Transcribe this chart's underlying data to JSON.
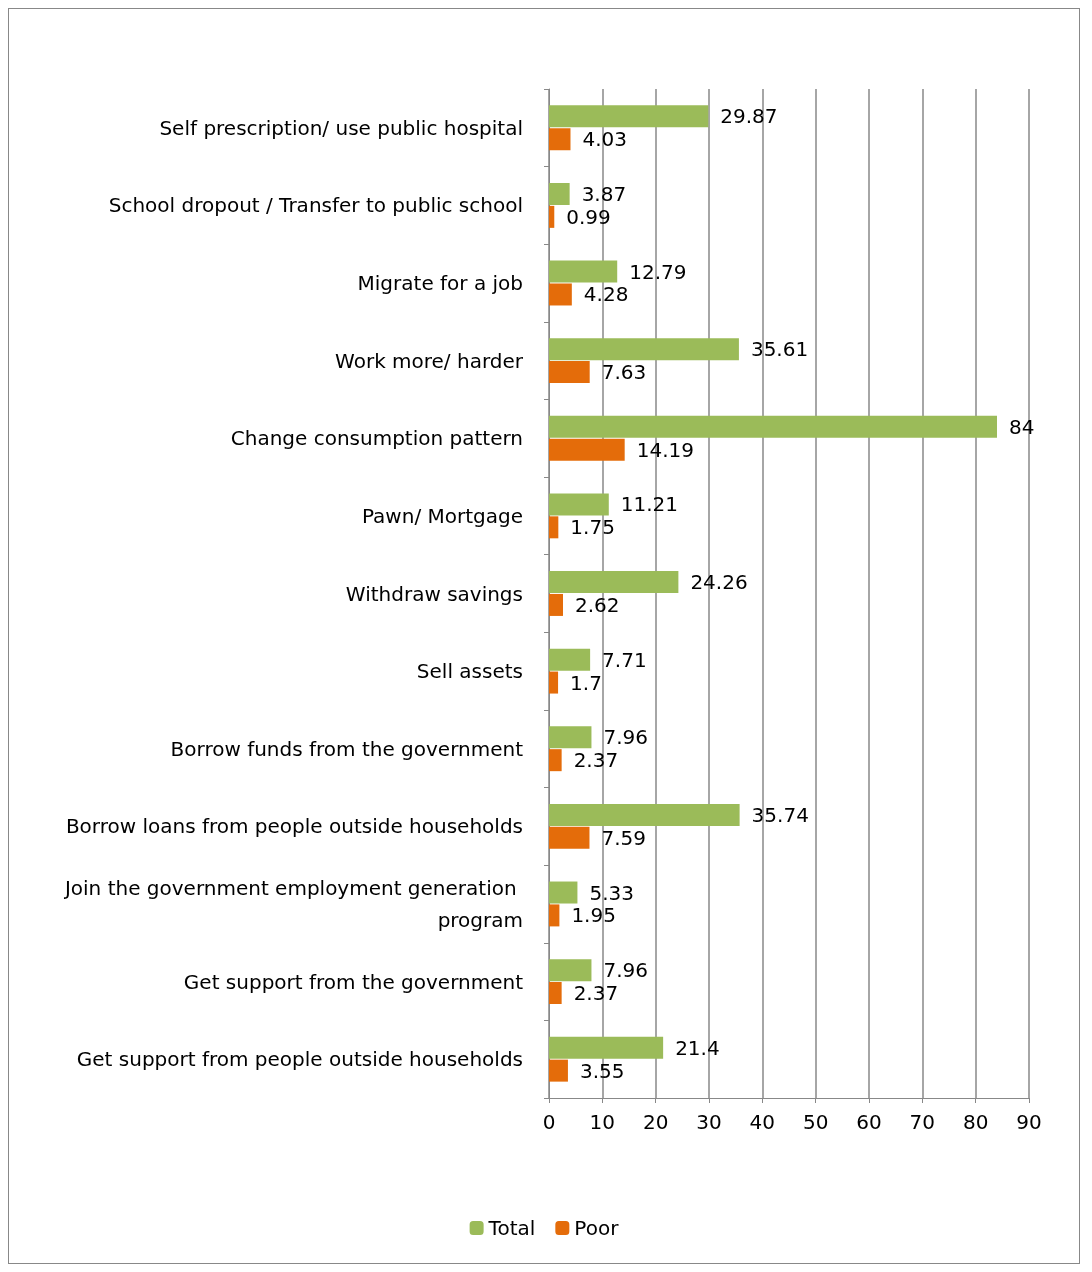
{
  "chart_data": {
    "type": "bar",
    "orientation": "horizontal",
    "categories": [
      "Self prescription/ use public hospital",
      "School dropout / Transfer to public school",
      "Migrate for a job",
      "Work more/ harder",
      "Change consumption pattern",
      "Pawn/ Mortgage",
      "Withdraw savings",
      "Sell assets",
      "Borrow funds from the government",
      "Borrow loans from people outside households",
      "Join the government employment generation program",
      "Get support from the government",
      "Get support from people outside households"
    ],
    "series": [
      {
        "name": "Total",
        "color": "#9bbb59",
        "values": [
          29.87,
          3.87,
          12.79,
          35.61,
          84,
          11.21,
          24.26,
          7.71,
          7.96,
          35.74,
          5.33,
          7.96,
          21.4
        ]
      },
      {
        "name": "Poor",
        "color": "#e46c0a",
        "values": [
          4.03,
          0.99,
          4.28,
          7.63,
          14.19,
          1.75,
          2.62,
          1.7,
          2.37,
          7.59,
          1.95,
          2.37,
          3.55
        ]
      }
    ],
    "xlim": [
      0,
      90
    ],
    "xticks": [
      0,
      10,
      20,
      30,
      40,
      50,
      60,
      70,
      80,
      90
    ],
    "grid": "x",
    "legend": "bottom",
    "data_labels": true
  }
}
